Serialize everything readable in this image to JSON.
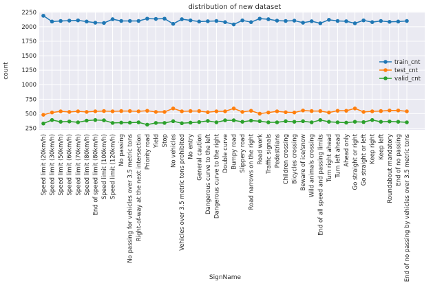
{
  "chart_data": {
    "type": "line",
    "title": "distribution of new dataset",
    "xlabel": "SignName",
    "ylabel": "count",
    "ylim": [
      220,
      2260
    ],
    "yticks": [
      250,
      500,
      750,
      1000,
      1250,
      1500,
      1750,
      2000,
      2250
    ],
    "grid": true,
    "legend_position": "right",
    "categories": [
      "Speed limit (20km/h)",
      "Speed limit (30km/h)",
      "Speed limit (50km/h)",
      "Speed limit (60km/h)",
      "Speed limit (70km/h)",
      "Speed limit (80km/h)",
      "End of speed limit (80km/h)",
      "Speed limit (100km/h)",
      "Speed limit (120km/h)",
      "No passing",
      "No passing for vehicles over 3.5 metric tons",
      "Right-of-way at the next intersection",
      "Priority road",
      "Yield",
      "Stop",
      "No vehicles",
      "Vehicles over 3.5 metric tons prohibited",
      "No entry",
      "General caution",
      "Dangerous curve to the left",
      "Dangerous curve to the right",
      "Double curve",
      "Bumpy road",
      "Slippery road",
      "Road narrows on the right",
      "Road work",
      "Traffic signals",
      "Pedestrians",
      "Children crossing",
      "Bicycles crossing",
      "Beware of ice/snow",
      "Wild animals crossing",
      "End of all speed and passing limits",
      "Turn right ahead",
      "Turn left ahead",
      "Ahead only",
      "Go straight or right",
      "Go straight or left",
      "Keep right",
      "Keep left",
      "Roundabout mandatory",
      "End of no passing",
      "End of no passing by vehicles over 3.5 metric tons"
    ],
    "series": [
      {
        "name": "train_cnt",
        "color": "#1f77b4",
        "values": [
          2190,
          2090,
          2100,
          2105,
          2110,
          2090,
          2070,
          2065,
          2130,
          2100,
          2100,
          2100,
          2140,
          2135,
          2140,
          2050,
          2130,
          2110,
          2090,
          2095,
          2100,
          2080,
          2040,
          2110,
          2080,
          2140,
          2130,
          2105,
          2100,
          2105,
          2070,
          2095,
          2060,
          2120,
          2100,
          2095,
          2060,
          2110,
          2080,
          2100,
          2085,
          2090,
          2100
        ]
      },
      {
        "name": "test_cnt",
        "color": "#ff7f0e",
        "values": [
          480,
          520,
          540,
          530,
          540,
          530,
          540,
          545,
          540,
          545,
          545,
          540,
          550,
          530,
          530,
          590,
          540,
          545,
          545,
          525,
          540,
          540,
          590,
          530,
          550,
          500,
          520,
          540,
          525,
          520,
          555,
          545,
          545,
          520,
          550,
          550,
          590,
          530,
          540,
          545,
          555,
          555,
          540
        ]
      },
      {
        "name": "valid_cnt",
        "color": "#2ca02c",
        "values": [
          330,
          390,
          360,
          365,
          350,
          380,
          390,
          385,
          340,
          345,
          345,
          350,
          310,
          340,
          340,
          370,
          335,
          345,
          355,
          375,
          350,
          385,
          385,
          360,
          380,
          370,
          350,
          350,
          370,
          360,
          370,
          350,
          390,
          360,
          350,
          345,
          360,
          355,
          390,
          360,
          365,
          360,
          350
        ]
      }
    ]
  }
}
